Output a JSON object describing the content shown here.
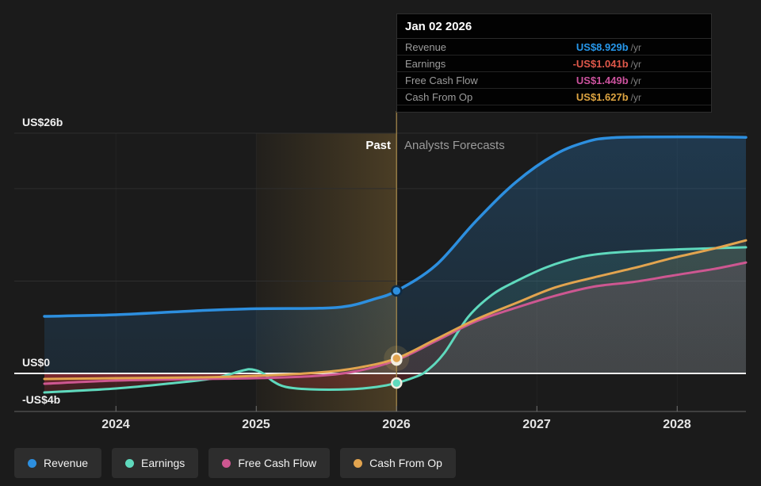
{
  "tooltip": {
    "date": "Jan 02 2026",
    "rows": [
      {
        "label": "Revenue",
        "value": "US$8.929b",
        "unit": "/yr",
        "color": "#2797ea"
      },
      {
        "label": "Earnings",
        "value": "-US$1.041b",
        "unit": "/yr",
        "color": "#e0584a"
      },
      {
        "label": "Free Cash Flow",
        "value": "US$1.449b",
        "unit": "/yr",
        "color": "#cb529d"
      },
      {
        "label": "Cash From Op",
        "value": "US$1.627b",
        "unit": "/yr",
        "color": "#dda441"
      }
    ]
  },
  "annotations": {
    "past": "Past",
    "forecast": "Analysts Forecasts"
  },
  "axis": {
    "y_labels": [
      {
        "text": "US$26b",
        "value": 26
      },
      {
        "text": "US$0",
        "value": 0
      },
      {
        "text": "-US$4b",
        "value": -4
      }
    ],
    "x_labels": [
      "2024",
      "2025",
      "2026",
      "2027",
      "2028"
    ]
  },
  "legend": [
    {
      "label": "Revenue",
      "color": "#2d8fdf"
    },
    {
      "label": "Earnings",
      "color": "#5fd9bd"
    },
    {
      "label": "Free Cash Flow",
      "color": "#cd5791"
    },
    {
      "label": "Cash From Op",
      "color": "#e2a44f"
    }
  ],
  "chart_data": {
    "type": "line",
    "unit": "US$ billions per year",
    "xlim": [
      2023.49,
      2028.49
    ],
    "ylim": [
      -4.12,
      26
    ],
    "x_ticks": [
      2024,
      2025,
      2026,
      2027,
      2028
    ],
    "gridline_values": [
      26,
      20,
      10
    ],
    "zero_line": true,
    "past_band": [
      2025,
      2026
    ],
    "divider_x": 2026,
    "marker_x": 2026,
    "series": [
      {
        "name": "Revenue",
        "color": "#2d8fdf",
        "width": 3.5,
        "marker": true,
        "marker_ring": "#0e2b45",
        "points": [
          [
            2023.49,
            6.18
          ],
          [
            2024.0,
            6.35
          ],
          [
            2024.6,
            6.8
          ],
          [
            2025.0,
            7.0
          ],
          [
            2025.45,
            7.05
          ],
          [
            2025.66,
            7.3
          ],
          [
            2025.83,
            8.0
          ],
          [
            2026.0,
            8.929
          ],
          [
            2026.28,
            11.7
          ],
          [
            2026.56,
            16.4
          ],
          [
            2026.85,
            20.7
          ],
          [
            2027.13,
            23.7
          ],
          [
            2027.36,
            25.1
          ],
          [
            2027.53,
            25.5
          ],
          [
            2027.81,
            25.6
          ],
          [
            2028.26,
            25.6
          ],
          [
            2028.49,
            25.55
          ]
        ]
      },
      {
        "name": "Earnings",
        "color": "#5fd9bd",
        "width": 3,
        "marker": true,
        "marker_ring": "#f3ede1",
        "points": [
          [
            2023.49,
            -2.06
          ],
          [
            2024.0,
            -1.63
          ],
          [
            2024.42,
            -1.03
          ],
          [
            2024.7,
            -0.52
          ],
          [
            2024.9,
            0.3
          ],
          [
            2024.97,
            0.43
          ],
          [
            2025.05,
            0.0
          ],
          [
            2025.12,
            -0.86
          ],
          [
            2025.21,
            -1.46
          ],
          [
            2025.38,
            -1.72
          ],
          [
            2025.66,
            -1.72
          ],
          [
            2025.86,
            -1.46
          ],
          [
            2026.0,
            -1.041
          ],
          [
            2026.14,
            -0.34
          ],
          [
            2026.22,
            0.34
          ],
          [
            2026.34,
            2.2
          ],
          [
            2026.51,
            6.1
          ],
          [
            2026.68,
            8.5
          ],
          [
            2026.85,
            9.96
          ],
          [
            2027.07,
            11.5
          ],
          [
            2027.31,
            12.6
          ],
          [
            2027.53,
            13.05
          ],
          [
            2027.81,
            13.3
          ],
          [
            2028.15,
            13.5
          ],
          [
            2028.49,
            13.65
          ]
        ]
      },
      {
        "name": "Free Cash Flow",
        "color": "#cd5791",
        "width": 3,
        "marker": true,
        "marker_ring": "#f3ede1",
        "points": [
          [
            2023.49,
            -1.12
          ],
          [
            2024.0,
            -0.77
          ],
          [
            2024.59,
            -0.6
          ],
          [
            2025.0,
            -0.52
          ],
          [
            2025.44,
            -0.26
          ],
          [
            2025.72,
            0.26
          ],
          [
            2026.0,
            1.449
          ],
          [
            2026.28,
            3.5
          ],
          [
            2026.56,
            5.6
          ],
          [
            2026.85,
            7.1
          ],
          [
            2027.13,
            8.4
          ],
          [
            2027.41,
            9.4
          ],
          [
            2027.69,
            9.9
          ],
          [
            2027.97,
            10.6
          ],
          [
            2028.26,
            11.3
          ],
          [
            2028.49,
            12.0
          ]
        ]
      },
      {
        "name": "Cash From Op",
        "color": "#e2a44f",
        "width": 3,
        "marker": true,
        "marker_ring": "#f3ede1",
        "points": [
          [
            2023.49,
            -0.6
          ],
          [
            2024.0,
            -0.52
          ],
          [
            2024.59,
            -0.43
          ],
          [
            2025.0,
            -0.26
          ],
          [
            2025.44,
            0.09
          ],
          [
            2025.72,
            0.6
          ],
          [
            2026.0,
            1.627
          ],
          [
            2026.28,
            3.7
          ],
          [
            2026.56,
            5.8
          ],
          [
            2026.85,
            7.6
          ],
          [
            2027.13,
            9.3
          ],
          [
            2027.41,
            10.4
          ],
          [
            2027.69,
            11.4
          ],
          [
            2027.97,
            12.5
          ],
          [
            2028.26,
            13.5
          ],
          [
            2028.49,
            14.4
          ]
        ]
      }
    ]
  }
}
